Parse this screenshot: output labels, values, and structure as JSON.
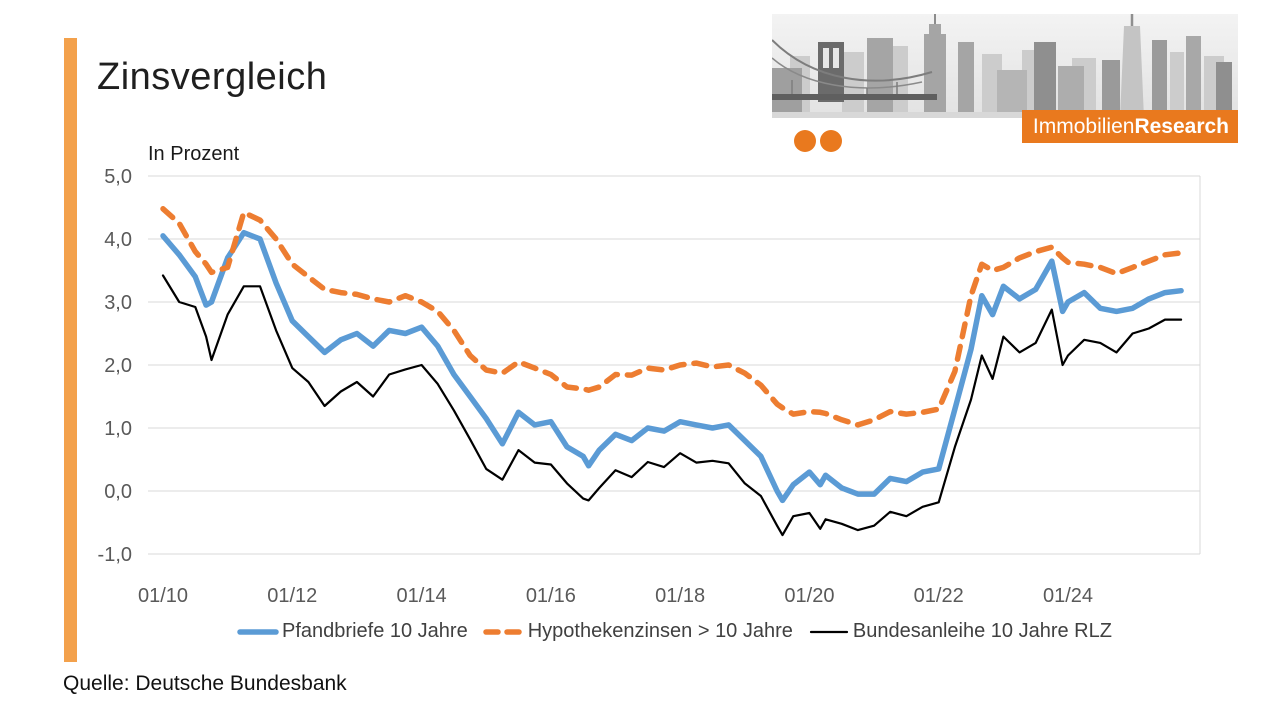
{
  "slide": {
    "title": "Zinsvergleich",
    "source": "Quelle: Deutsche Bundesbank",
    "logo": {
      "brand_regular": "Immobilien",
      "brand_bold": "Research"
    },
    "colors": {
      "accent_bar": "#F3A14C",
      "logo_orange": "#E9791E",
      "grid": "#D9D9D9",
      "axis_text": "#595959",
      "legend_text": "#404040"
    }
  },
  "chart_data": {
    "type": "line",
    "title": "Zinsvergleich",
    "ylabel": "In Prozent",
    "ylim": [
      -1.0,
      5.0
    ],
    "grid": "horizontal",
    "legend_position": "bottom",
    "y_ticks": [
      {
        "value": 5,
        "label": "5,0"
      },
      {
        "value": 4,
        "label": "4,0"
      },
      {
        "value": 3,
        "label": "3,0"
      },
      {
        "value": 2,
        "label": "2,0"
      },
      {
        "value": 1,
        "label": "1,0"
      },
      {
        "value": 0,
        "label": "0,0"
      },
      {
        "value": -1,
        "label": "-1,0"
      }
    ],
    "x_ticks": [
      {
        "month": 0,
        "label": "01/10"
      },
      {
        "month": 24,
        "label": "01/12"
      },
      {
        "month": 48,
        "label": "01/14"
      },
      {
        "month": 72,
        "label": "01/16"
      },
      {
        "month": 96,
        "label": "01/18"
      },
      {
        "month": 120,
        "label": "01/20"
      },
      {
        "month": 144,
        "label": "01/22"
      },
      {
        "month": 168,
        "label": "01/24"
      }
    ],
    "months_since_jan_2010": [
      0,
      3,
      6,
      8,
      9,
      12,
      15,
      18,
      21,
      24,
      27,
      30,
      33,
      36,
      39,
      42,
      45,
      48,
      51,
      54,
      57,
      60,
      63,
      66,
      69,
      72,
      75,
      78,
      79,
      81,
      84,
      87,
      90,
      93,
      96,
      99,
      102,
      105,
      108,
      111,
      114,
      115,
      117,
      120,
      122,
      123,
      126,
      129,
      132,
      135,
      138,
      141,
      144,
      147,
      150,
      152,
      154,
      156,
      159,
      162,
      165,
      167,
      168,
      171,
      174,
      177,
      180,
      183,
      186,
      189
    ],
    "series": [
      {
        "name": "Pfandbriefe 10 Jahre",
        "color": "#5B9BD5",
        "dash": null,
        "width": 5.5,
        "values": [
          4.05,
          3.75,
          3.4,
          2.95,
          3.0,
          3.7,
          4.1,
          4.0,
          3.3,
          2.7,
          2.45,
          2.2,
          2.4,
          2.5,
          2.3,
          2.55,
          2.5,
          2.6,
          2.3,
          1.85,
          1.5,
          1.15,
          0.75,
          1.25,
          1.05,
          1.1,
          0.7,
          0.55,
          0.4,
          0.65,
          0.9,
          0.8,
          1.0,
          0.95,
          1.1,
          1.05,
          1.0,
          1.05,
          0.8,
          0.55,
          0.0,
          -0.15,
          0.1,
          0.3,
          0.1,
          0.25,
          0.05,
          -0.05,
          -0.05,
          0.2,
          0.15,
          0.3,
          0.35,
          1.3,
          2.25,
          3.1,
          2.8,
          3.25,
          3.05,
          3.2,
          3.65,
          2.85,
          3.0,
          3.15,
          2.9,
          2.85,
          2.9,
          3.05,
          3.15,
          3.18
        ]
      },
      {
        "name": "Hypothekenzinsen > 10 Jahre",
        "color": "#ED7D31",
        "dash": "13 10",
        "width": 5.5,
        "values": [
          4.48,
          4.25,
          3.8,
          3.6,
          3.47,
          3.55,
          4.42,
          4.3,
          4.0,
          3.6,
          3.4,
          3.2,
          3.15,
          3.12,
          3.05,
          3.0,
          3.1,
          3.0,
          2.85,
          2.55,
          2.15,
          1.92,
          1.87,
          2.05,
          1.95,
          1.85,
          1.65,
          1.62,
          1.6,
          1.65,
          1.85,
          1.84,
          1.95,
          1.92,
          2.0,
          2.03,
          1.97,
          2.0,
          1.87,
          1.68,
          1.38,
          1.32,
          1.22,
          1.26,
          1.25,
          1.23,
          1.13,
          1.05,
          1.13,
          1.26,
          1.22,
          1.25,
          1.3,
          1.9,
          3.1,
          3.6,
          3.5,
          3.55,
          3.7,
          3.8,
          3.87,
          3.7,
          3.63,
          3.6,
          3.55,
          3.45,
          3.55,
          3.65,
          3.75,
          3.78
        ]
      },
      {
        "name": "Bundesanleihe 10 Jahre RLZ",
        "color": "#000000",
        "dash": null,
        "width": 2.2,
        "values": [
          3.42,
          3.0,
          2.92,
          2.45,
          2.08,
          2.8,
          3.25,
          3.25,
          2.55,
          1.95,
          1.73,
          1.35,
          1.58,
          1.73,
          1.5,
          1.85,
          1.93,
          2.0,
          1.7,
          1.28,
          0.82,
          0.35,
          0.18,
          0.65,
          0.45,
          0.42,
          0.12,
          -0.12,
          -0.15,
          0.05,
          0.33,
          0.22,
          0.46,
          0.38,
          0.6,
          0.45,
          0.48,
          0.44,
          0.12,
          -0.08,
          -0.55,
          -0.7,
          -0.4,
          -0.35,
          -0.6,
          -0.45,
          -0.52,
          -0.62,
          -0.55,
          -0.33,
          -0.4,
          -0.25,
          -0.18,
          0.7,
          1.45,
          2.15,
          1.78,
          2.45,
          2.2,
          2.35,
          2.88,
          2.0,
          2.15,
          2.4,
          2.35,
          2.2,
          2.5,
          2.58,
          2.72,
          2.72
        ]
      }
    ]
  }
}
